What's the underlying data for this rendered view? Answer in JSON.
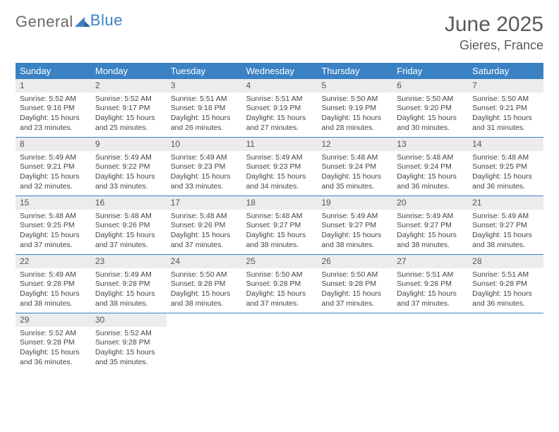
{
  "logo": {
    "part1": "General",
    "part2": "Blue"
  },
  "title": "June 2025",
  "location": "Gieres, France",
  "colors": {
    "header_bg": "#3b82c4",
    "header_text": "#ffffff",
    "daynum_bg": "#ececec",
    "text": "#444444",
    "logo_gray": "#6a6a6a",
    "logo_blue": "#3b82c4",
    "border": "#3b82c4"
  },
  "weekdays": [
    "Sunday",
    "Monday",
    "Tuesday",
    "Wednesday",
    "Thursday",
    "Friday",
    "Saturday"
  ],
  "weeks": [
    [
      {
        "n": "1",
        "sunrise": "Sunrise: 5:52 AM",
        "sunset": "Sunset: 9:16 PM",
        "day1": "Daylight: 15 hours",
        "day2": "and 23 minutes."
      },
      {
        "n": "2",
        "sunrise": "Sunrise: 5:52 AM",
        "sunset": "Sunset: 9:17 PM",
        "day1": "Daylight: 15 hours",
        "day2": "and 25 minutes."
      },
      {
        "n": "3",
        "sunrise": "Sunrise: 5:51 AM",
        "sunset": "Sunset: 9:18 PM",
        "day1": "Daylight: 15 hours",
        "day2": "and 26 minutes."
      },
      {
        "n": "4",
        "sunrise": "Sunrise: 5:51 AM",
        "sunset": "Sunset: 9:19 PM",
        "day1": "Daylight: 15 hours",
        "day2": "and 27 minutes."
      },
      {
        "n": "5",
        "sunrise": "Sunrise: 5:50 AM",
        "sunset": "Sunset: 9:19 PM",
        "day1": "Daylight: 15 hours",
        "day2": "and 28 minutes."
      },
      {
        "n": "6",
        "sunrise": "Sunrise: 5:50 AM",
        "sunset": "Sunset: 9:20 PM",
        "day1": "Daylight: 15 hours",
        "day2": "and 30 minutes."
      },
      {
        "n": "7",
        "sunrise": "Sunrise: 5:50 AM",
        "sunset": "Sunset: 9:21 PM",
        "day1": "Daylight: 15 hours",
        "day2": "and 31 minutes."
      }
    ],
    [
      {
        "n": "8",
        "sunrise": "Sunrise: 5:49 AM",
        "sunset": "Sunset: 9:21 PM",
        "day1": "Daylight: 15 hours",
        "day2": "and 32 minutes."
      },
      {
        "n": "9",
        "sunrise": "Sunrise: 5:49 AM",
        "sunset": "Sunset: 9:22 PM",
        "day1": "Daylight: 15 hours",
        "day2": "and 33 minutes."
      },
      {
        "n": "10",
        "sunrise": "Sunrise: 5:49 AM",
        "sunset": "Sunset: 9:23 PM",
        "day1": "Daylight: 15 hours",
        "day2": "and 33 minutes."
      },
      {
        "n": "11",
        "sunrise": "Sunrise: 5:49 AM",
        "sunset": "Sunset: 9:23 PM",
        "day1": "Daylight: 15 hours",
        "day2": "and 34 minutes."
      },
      {
        "n": "12",
        "sunrise": "Sunrise: 5:48 AM",
        "sunset": "Sunset: 9:24 PM",
        "day1": "Daylight: 15 hours",
        "day2": "and 35 minutes."
      },
      {
        "n": "13",
        "sunrise": "Sunrise: 5:48 AM",
        "sunset": "Sunset: 9:24 PM",
        "day1": "Daylight: 15 hours",
        "day2": "and 36 minutes."
      },
      {
        "n": "14",
        "sunrise": "Sunrise: 5:48 AM",
        "sunset": "Sunset: 9:25 PM",
        "day1": "Daylight: 15 hours",
        "day2": "and 36 minutes."
      }
    ],
    [
      {
        "n": "15",
        "sunrise": "Sunrise: 5:48 AM",
        "sunset": "Sunset: 9:25 PM",
        "day1": "Daylight: 15 hours",
        "day2": "and 37 minutes."
      },
      {
        "n": "16",
        "sunrise": "Sunrise: 5:48 AM",
        "sunset": "Sunset: 9:26 PM",
        "day1": "Daylight: 15 hours",
        "day2": "and 37 minutes."
      },
      {
        "n": "17",
        "sunrise": "Sunrise: 5:48 AM",
        "sunset": "Sunset: 9:26 PM",
        "day1": "Daylight: 15 hours",
        "day2": "and 37 minutes."
      },
      {
        "n": "18",
        "sunrise": "Sunrise: 5:48 AM",
        "sunset": "Sunset: 9:27 PM",
        "day1": "Daylight: 15 hours",
        "day2": "and 38 minutes."
      },
      {
        "n": "19",
        "sunrise": "Sunrise: 5:49 AM",
        "sunset": "Sunset: 9:27 PM",
        "day1": "Daylight: 15 hours",
        "day2": "and 38 minutes."
      },
      {
        "n": "20",
        "sunrise": "Sunrise: 5:49 AM",
        "sunset": "Sunset: 9:27 PM",
        "day1": "Daylight: 15 hours",
        "day2": "and 38 minutes."
      },
      {
        "n": "21",
        "sunrise": "Sunrise: 5:49 AM",
        "sunset": "Sunset: 9:27 PM",
        "day1": "Daylight: 15 hours",
        "day2": "and 38 minutes."
      }
    ],
    [
      {
        "n": "22",
        "sunrise": "Sunrise: 5:49 AM",
        "sunset": "Sunset: 9:28 PM",
        "day1": "Daylight: 15 hours",
        "day2": "and 38 minutes."
      },
      {
        "n": "23",
        "sunrise": "Sunrise: 5:49 AM",
        "sunset": "Sunset: 9:28 PM",
        "day1": "Daylight: 15 hours",
        "day2": "and 38 minutes."
      },
      {
        "n": "24",
        "sunrise": "Sunrise: 5:50 AM",
        "sunset": "Sunset: 9:28 PM",
        "day1": "Daylight: 15 hours",
        "day2": "and 38 minutes."
      },
      {
        "n": "25",
        "sunrise": "Sunrise: 5:50 AM",
        "sunset": "Sunset: 9:28 PM",
        "day1": "Daylight: 15 hours",
        "day2": "and 37 minutes."
      },
      {
        "n": "26",
        "sunrise": "Sunrise: 5:50 AM",
        "sunset": "Sunset: 9:28 PM",
        "day1": "Daylight: 15 hours",
        "day2": "and 37 minutes."
      },
      {
        "n": "27",
        "sunrise": "Sunrise: 5:51 AM",
        "sunset": "Sunset: 9:28 PM",
        "day1": "Daylight: 15 hours",
        "day2": "and 37 minutes."
      },
      {
        "n": "28",
        "sunrise": "Sunrise: 5:51 AM",
        "sunset": "Sunset: 9:28 PM",
        "day1": "Daylight: 15 hours",
        "day2": "and 36 minutes."
      }
    ],
    [
      {
        "n": "29",
        "sunrise": "Sunrise: 5:52 AM",
        "sunset": "Sunset: 9:28 PM",
        "day1": "Daylight: 15 hours",
        "day2": "and 36 minutes."
      },
      {
        "n": "30",
        "sunrise": "Sunrise: 5:52 AM",
        "sunset": "Sunset: 9:28 PM",
        "day1": "Daylight: 15 hours",
        "day2": "and 35 minutes."
      },
      null,
      null,
      null,
      null,
      null
    ]
  ]
}
